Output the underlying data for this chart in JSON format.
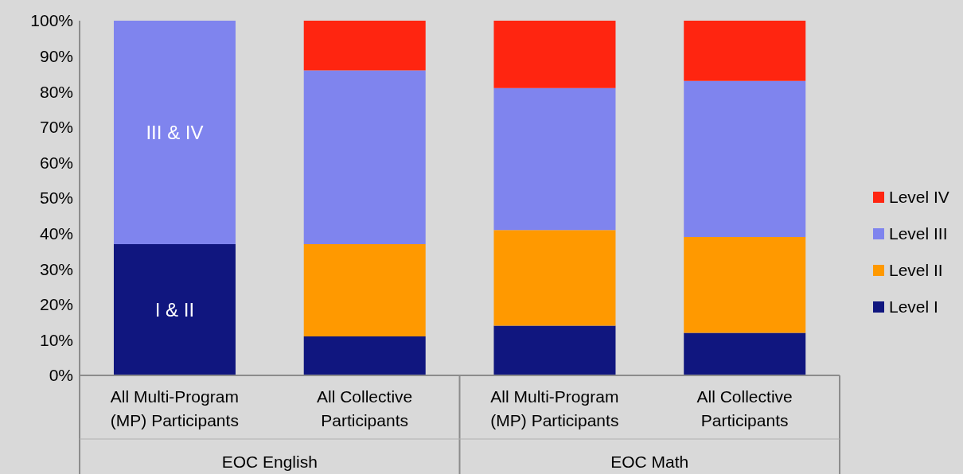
{
  "chart_data": {
    "type": "bar",
    "stacked": true,
    "categories": [
      "All Multi-Program (MP) Participants",
      "All Collective Participants",
      "All Multi-Program (MP) Participants",
      "All Collective Participants"
    ],
    "series": [
      {
        "name": "Level I",
        "color": "#10167f",
        "values": [
          37,
          11,
          14,
          12
        ],
        "value_labels": [
          "I & II",
          null,
          null,
          null
        ]
      },
      {
        "name": "Level II",
        "color": "#ff9900",
        "values": [
          null,
          26,
          27,
          27
        ]
      },
      {
        "name": "Level III",
        "color": "#7f84ee",
        "values": [
          63,
          49,
          40,
          44
        ],
        "value_labels": [
          "III & IV",
          null,
          null,
          null
        ]
      },
      {
        "name": "Level IV",
        "color": "#ff2510",
        "values": [
          null,
          14,
          19,
          17
        ]
      }
    ],
    "ylim": [
      0,
      100
    ],
    "yticks": [
      {
        "value": 0,
        "label": "0%"
      },
      {
        "value": 10,
        "label": "10%"
      },
      {
        "value": 20,
        "label": "20%"
      },
      {
        "value": 30,
        "label": "30%"
      },
      {
        "value": 40,
        "label": "40%"
      },
      {
        "value": 50,
        "label": "50%"
      },
      {
        "value": 60,
        "label": "60%"
      },
      {
        "value": 70,
        "label": "70%"
      },
      {
        "value": 80,
        "label": "80%"
      },
      {
        "value": 90,
        "label": "90%"
      },
      {
        "value": 100,
        "label": "100%"
      }
    ],
    "grid": false,
    "legend": "right",
    "annotations": [
      "EOC English",
      "EOC Math"
    ]
  }
}
